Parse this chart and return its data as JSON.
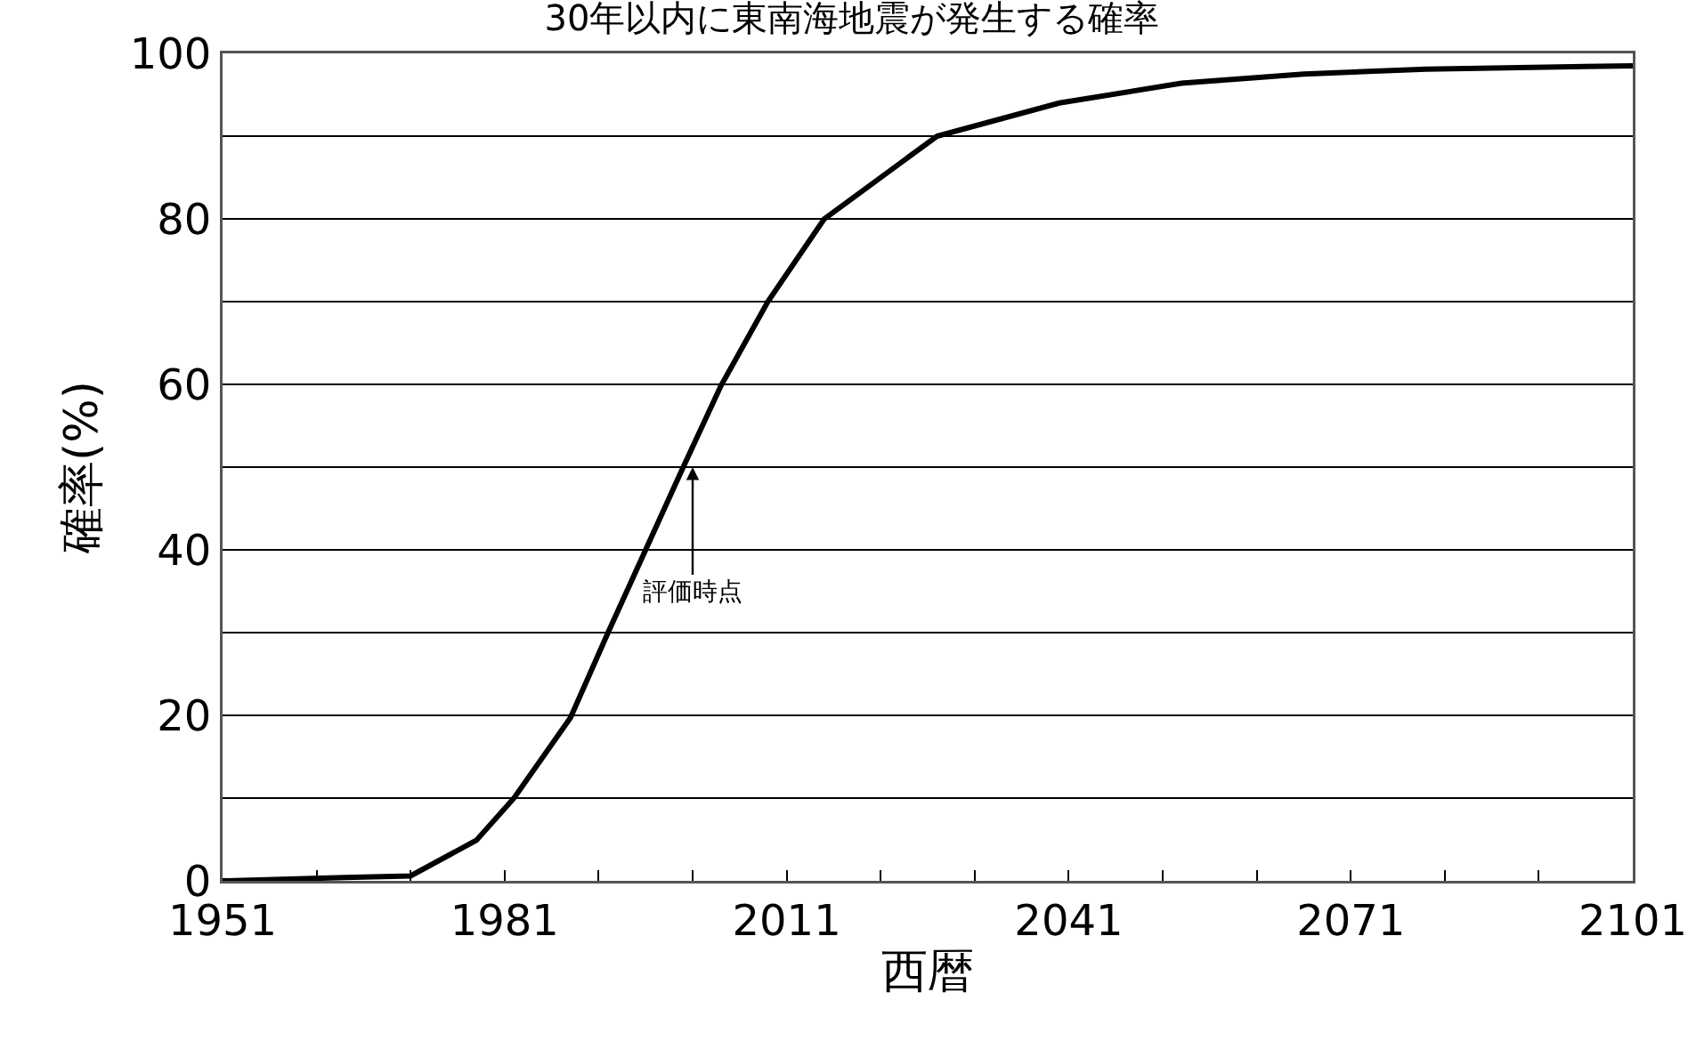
{
  "chart_data": {
    "type": "line",
    "title": "30年以内に東南海地震が発生する確率",
    "xlabel": "西暦",
    "ylabel": "確率(%)",
    "x": [
      1951,
      1964,
      1971,
      1978,
      1982,
      1988,
      1992,
      1996,
      2000,
      2004,
      2009,
      2015,
      2027,
      2040,
      2053,
      2066,
      2079,
      2101
    ],
    "series": [
      {
        "color": "#000000",
        "values": [
          0,
          0.4,
          0.6,
          4.9,
          10,
          19.7,
          30,
          40,
          50,
          59.8,
          70,
          80,
          90,
          94,
          96.4,
          97.5,
          98.1,
          98.5
        ]
      }
    ],
    "annotations": [
      {
        "text": "評価時点",
        "x": 2001,
        "y": 50
      }
    ],
    "xlim": [
      1951,
      2101
    ],
    "xticks": [
      1951,
      {
        "value": 1961,
        "label": null
      },
      {
        "value": 1971,
        "label": null
      },
      1981,
      {
        "value": 1991,
        "label": null
      },
      {
        "value": 2001,
        "label": null
      },
      2011,
      {
        "value": 2021,
        "label": null
      },
      {
        "value": 2031,
        "label": null
      },
      2041,
      {
        "value": 2051,
        "label": null
      },
      {
        "value": 2061,
        "label": null
      },
      2071,
      {
        "value": 2081,
        "label": null
      },
      {
        "value": 2091,
        "label": null
      },
      2101
    ],
    "ylim": [
      0,
      100
    ],
    "yticks": [
      0,
      {
        "value": 10,
        "label": null
      },
      20,
      {
        "value": 30,
        "label": null
      },
      40,
      {
        "value": 50,
        "label": null
      },
      60,
      {
        "value": 70,
        "label": null
      },
      80,
      {
        "value": 90,
        "label": null
      },
      100
    ],
    "grid": "y",
    "marker": "none",
    "line_style": "solid"
  }
}
